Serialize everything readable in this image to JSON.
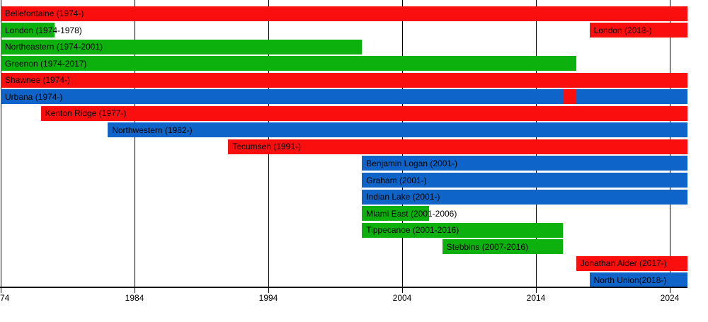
{
  "chart_data": {
    "type": "bar",
    "subtype": "gantt-timeline",
    "title": "",
    "xlabel": "",
    "ylabel": "",
    "axis_range_years": [
      1974,
      2025
    ],
    "grid": "vertical-gridlines-on",
    "legend": "none",
    "colors": {
      "red": "#fb0e0e",
      "green": "#0db10d",
      "blue": "#0e64c8",
      "axis": "#000000",
      "text": "#000000",
      "background": "#ffffff"
    },
    "x_axis": {
      "ticks": [
        {
          "label": "74",
          "year": 1974
        },
        {
          "label": "1984",
          "year": 1984
        },
        {
          "label": "1994",
          "year": 1994
        },
        {
          "label": "2004",
          "year": 2004
        },
        {
          "label": "2014",
          "year": 2014
        },
        {
          "label": "2024",
          "year": 2024
        }
      ]
    },
    "rows": [
      {
        "bars": [
          {
            "label": "Bellefontaine (1974-)",
            "start": 1974,
            "end": "present",
            "color": "red"
          }
        ]
      },
      {
        "bars": [
          {
            "label": "London (1974-1978)",
            "start": 1974,
            "end": 1978,
            "color": "green"
          },
          {
            "label": "London (2018-)",
            "start": 2018,
            "end": "present",
            "color": "red"
          }
        ]
      },
      {
        "bars": [
          {
            "label": "Northeastern (1974-2001)",
            "start": 1974,
            "end": 2001,
            "color": "green"
          }
        ]
      },
      {
        "bars": [
          {
            "label": "Greenon (1974-2017)",
            "start": 1974,
            "end": 2017,
            "color": "green"
          }
        ]
      },
      {
        "bars": [
          {
            "label": "Shawnee (1974-)",
            "start": 1974,
            "end": "present",
            "color": "red"
          }
        ]
      },
      {
        "bars": [
          {
            "label": "Urbana (1974-)",
            "start": 1974,
            "end": 2016,
            "color": "blue"
          },
          {
            "label": "",
            "start": 2016,
            "end": 2017,
            "color": "red"
          },
          {
            "label": "",
            "start": 2017,
            "end": "present",
            "color": "blue"
          }
        ]
      },
      {
        "bars": [
          {
            "label": "Kenton Ridge (1977-)",
            "start": 1977,
            "end": "present",
            "color": "red"
          }
        ]
      },
      {
        "bars": [
          {
            "label": "Northwestern (1982-)",
            "start": 1982,
            "end": "present",
            "color": "blue"
          }
        ]
      },
      {
        "bars": [
          {
            "label": "Tecumseh (1991-)",
            "start": 1991,
            "end": "present",
            "color": "red"
          }
        ]
      },
      {
        "bars": [
          {
            "label": "Benjamin Logan (2001-)",
            "start": 2001,
            "end": "present",
            "color": "blue"
          }
        ]
      },
      {
        "bars": [
          {
            "label": "Graham (2001-)",
            "start": 2001,
            "end": "present",
            "color": "blue"
          }
        ]
      },
      {
        "bars": [
          {
            "label": "Indian Lake (2001-)",
            "start": 2001,
            "end": "present",
            "color": "blue"
          }
        ]
      },
      {
        "bars": [
          {
            "label": "Miami East (2001-2006)",
            "start": 2001,
            "end": 2006,
            "color": "green"
          }
        ]
      },
      {
        "bars": [
          {
            "label": "Tippecanoe (2001-2016)",
            "start": 2001,
            "end": 2016,
            "color": "green"
          }
        ]
      },
      {
        "bars": [
          {
            "label": "Stebbins (2007-2016)",
            "start": 2007,
            "end": 2016,
            "color": "green"
          }
        ]
      },
      {
        "bars": [
          {
            "label": "Jonathan Alder (2017-)",
            "start": 2017,
            "end": "present",
            "color": "red"
          }
        ]
      },
      {
        "bars": [
          {
            "label": "North Union(2018-)",
            "start": 2018,
            "end": "present",
            "color": "blue"
          }
        ]
      }
    ]
  }
}
